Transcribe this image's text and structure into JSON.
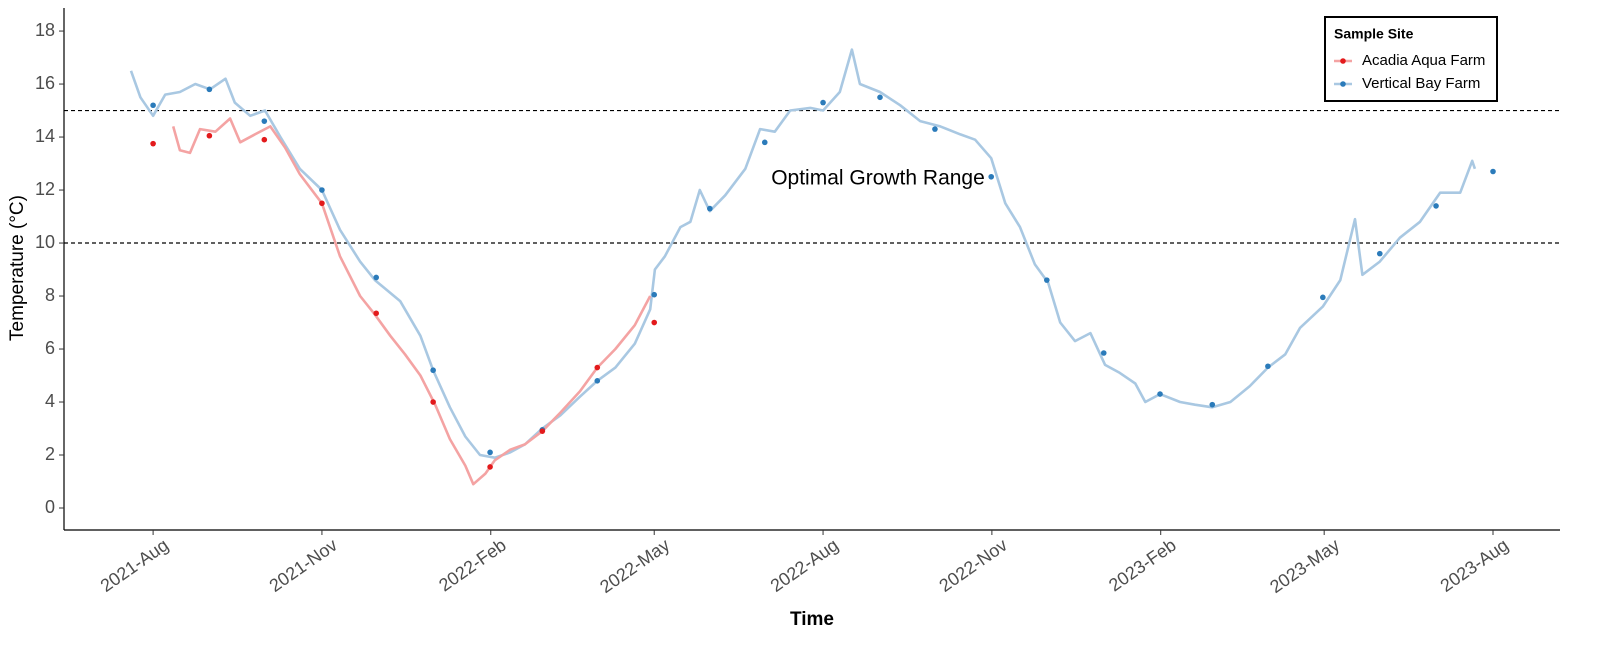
{
  "chart_data": {
    "type": "line",
    "x_label": "Time",
    "y_label": "Temperature (°C)",
    "annotation": "Optimal Growth Range",
    "legend_title": "Sample Site",
    "legend": "top-right",
    "xlim": [
      2021.448,
      2023.681
    ],
    "ylim": [
      -0.83,
      18.87
    ],
    "xticks": [
      {
        "value": 2021.581,
        "label": "2021-Aug"
      },
      {
        "value": 2021.833,
        "label": "2021-Nov"
      },
      {
        "value": 2022.085,
        "label": "2022-Feb"
      },
      {
        "value": 2022.329,
        "label": "2022-May"
      },
      {
        "value": 2022.581,
        "label": "2022-Aug"
      },
      {
        "value": 2022.833,
        "label": "2022-Nov"
      },
      {
        "value": 2023.085,
        "label": "2023-Feb"
      },
      {
        "value": 2023.329,
        "label": "2023-May"
      },
      {
        "value": 2023.581,
        "label": "2023-Aug"
      }
    ],
    "yticks": [
      0,
      2,
      4,
      6,
      8,
      10,
      12,
      14,
      16,
      18
    ],
    "hlines": [
      10,
      15
    ],
    "series": [
      {
        "name": "Acadia Aqua Farm",
        "color": "#f4a3a3",
        "point_color": "#e31a1c",
        "x": [
          2021.611,
          2021.621,
          2021.636,
          2021.651,
          2021.674,
          2021.696,
          2021.711,
          2021.733,
          2021.756,
          2021.778,
          2021.8,
          2021.833,
          2021.86,
          2021.89,
          2021.912,
          2021.935,
          2021.957,
          2021.98,
          2022.002,
          2022.024,
          2022.047,
          2022.059,
          2022.077,
          2022.091,
          2022.114,
          2022.136,
          2022.162,
          2022.189,
          2022.218,
          2022.244,
          2022.271,
          2022.3,
          2022.323
        ],
        "values": [
          14.4,
          13.5,
          13.4,
          14.3,
          14.2,
          14.7,
          13.8,
          14.1,
          14.4,
          13.6,
          12.6,
          11.5,
          9.5,
          8.0,
          7.3,
          6.5,
          5.8,
          5.0,
          3.9,
          2.6,
          1.6,
          0.9,
          1.3,
          1.8,
          2.2,
          2.4,
          2.9,
          3.6,
          4.4,
          5.3,
          6.0,
          6.9,
          8.0
        ],
        "sample_x": [
          2021.581,
          2021.665,
          2021.747,
          2021.833,
          2021.914,
          2021.999,
          2022.084,
          2022.162,
          2022.244,
          2022.329
        ],
        "sample_values": [
          13.75,
          14.05,
          13.9,
          11.5,
          7.35,
          4.0,
          1.55,
          2.9,
          5.3,
          7.0
        ]
      },
      {
        "name": "Vertical Bay Farm",
        "color": "#a9c8e2",
        "point_color": "#2b7bba",
        "x": [
          2021.548,
          2021.562,
          2021.581,
          2021.599,
          2021.621,
          2021.644,
          2021.666,
          2021.689,
          2021.703,
          2021.726,
          2021.748,
          2021.771,
          2021.8,
          2021.833,
          2021.86,
          2021.89,
          2021.912,
          2021.95,
          2021.98,
          2021.999,
          2022.024,
          2022.047,
          2022.069,
          2022.091,
          2022.114,
          2022.136,
          2022.162,
          2022.189,
          2022.218,
          2022.244,
          2022.271,
          2022.3,
          2022.323,
          2022.33,
          2022.345,
          2022.368,
          2022.383,
          2022.397,
          2022.412,
          2022.435,
          2022.465,
          2022.487,
          2022.509,
          2022.532,
          2022.562,
          2022.581,
          2022.606,
          2022.624,
          2022.636,
          2022.666,
          2022.696,
          2022.726,
          2022.756,
          2022.786,
          2022.808,
          2022.832,
          2022.853,
          2022.875,
          2022.897,
          2022.917,
          2022.935,
          2022.957,
          2022.98,
          2023.002,
          2023.024,
          2023.047,
          2023.062,
          2023.084,
          2023.114,
          2023.136,
          2023.162,
          2023.189,
          2023.218,
          2023.245,
          2023.271,
          2023.293,
          2023.327,
          2023.353,
          2023.375,
          2023.386,
          2023.412,
          2023.442,
          2023.472,
          2023.502,
          2023.532,
          2023.55,
          2023.554
        ],
        "values": [
          16.5,
          15.5,
          14.8,
          15.6,
          15.7,
          16.0,
          15.8,
          16.2,
          15.3,
          14.8,
          15.0,
          14.0,
          12.8,
          12.0,
          10.5,
          9.3,
          8.6,
          7.8,
          6.5,
          5.2,
          3.8,
          2.7,
          2.0,
          1.9,
          2.1,
          2.4,
          3.0,
          3.5,
          4.2,
          4.8,
          5.3,
          6.2,
          7.5,
          9.0,
          9.5,
          10.6,
          10.8,
          12.0,
          11.2,
          11.8,
          12.8,
          14.3,
          14.2,
          15.0,
          15.1,
          15.0,
          15.7,
          17.3,
          16.0,
          15.7,
          15.2,
          14.6,
          14.4,
          14.1,
          13.9,
          13.2,
          11.5,
          10.6,
          9.2,
          8.5,
          7.0,
          6.3,
          6.6,
          5.4,
          5.1,
          4.7,
          4.0,
          4.3,
          4.0,
          3.9,
          3.8,
          4.0,
          4.6,
          5.3,
          5.8,
          6.8,
          7.6,
          8.6,
          10.9,
          8.8,
          9.3,
          10.2,
          10.8,
          11.9,
          11.9,
          13.1,
          12.8
        ],
        "sample_x": [
          2021.581,
          2021.665,
          2021.747,
          2021.833,
          2021.914,
          2021.999,
          2022.084,
          2022.162,
          2022.244,
          2022.329,
          2022.412,
          2022.494,
          2022.581,
          2022.666,
          2022.748,
          2022.832,
          2022.915,
          2023.0,
          2023.084,
          2023.162,
          2023.245,
          2023.327,
          2023.412,
          2023.496,
          2023.581
        ],
        "sample_values": [
          15.2,
          15.8,
          14.6,
          12.0,
          8.7,
          5.2,
          2.1,
          2.95,
          4.8,
          8.05,
          11.3,
          13.8,
          15.3,
          15.5,
          14.3,
          12.5,
          8.6,
          5.85,
          4.3,
          3.9,
          5.35,
          7.95,
          9.6,
          11.4,
          12.7
        ]
      }
    ]
  }
}
